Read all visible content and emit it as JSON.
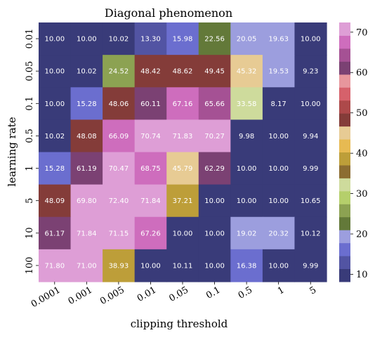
{
  "chart_data": {
    "type": "heatmap",
    "title": "Diagonal phenomenon",
    "xlabel": "clipping threshold",
    "ylabel": "learning rate",
    "x_categories": [
      "0.0001",
      "0.001",
      "0.005",
      "0.01",
      "0.05",
      "0.1",
      "0.5",
      "1",
      "5"
    ],
    "y_categories": [
      "0.01",
      "0.05",
      "0.1",
      "0.5",
      "1",
      "5",
      "10",
      "100"
    ],
    "values": [
      [
        10.0,
        10.0,
        10.02,
        13.3,
        15.98,
        22.56,
        20.05,
        19.63,
        10.0
      ],
      [
        10.0,
        10.02,
        24.52,
        48.42,
        48.62,
        49.45,
        45.32,
        19.53,
        9.23
      ],
      [
        10.0,
        15.28,
        48.06,
        60.11,
        67.16,
        65.66,
        33.58,
        8.17,
        10.0
      ],
      [
        10.02,
        48.08,
        66.09,
        70.74,
        71.83,
        70.27,
        9.98,
        10.0,
        9.94
      ],
      [
        15.28,
        61.19,
        70.47,
        68.75,
        45.79,
        62.29,
        10.0,
        10.0,
        9.99
      ],
      [
        48.09,
        69.8,
        72.4,
        71.84,
        37.21,
        10.0,
        10.0,
        10.0,
        10.65
      ],
      [
        61.17,
        71.84,
        71.15,
        67.26,
        10.0,
        10.0,
        19.02,
        20.32,
        10.12
      ],
      [
        71.8,
        71.0,
        38.93,
        10.0,
        10.11,
        10.0,
        16.38,
        10.0,
        9.99
      ]
    ],
    "colorbar_ticks": [
      10,
      20,
      30,
      40,
      50,
      60,
      70
    ],
    "colorbar_range": [
      8.17,
      72.4
    ],
    "colormap": [
      "#393b79",
      "#5254a3",
      "#6b6ecf",
      "#9c9ede",
      "#637939",
      "#8ca252",
      "#b5cf6b",
      "#cedb9c",
      "#8c6d31",
      "#bd9e39",
      "#e7ba52",
      "#e7cb94",
      "#843c39",
      "#ad494a",
      "#d6616b",
      "#e7969c",
      "#7b4173",
      "#a55194",
      "#ce6dbd",
      "#de9ed6"
    ]
  }
}
